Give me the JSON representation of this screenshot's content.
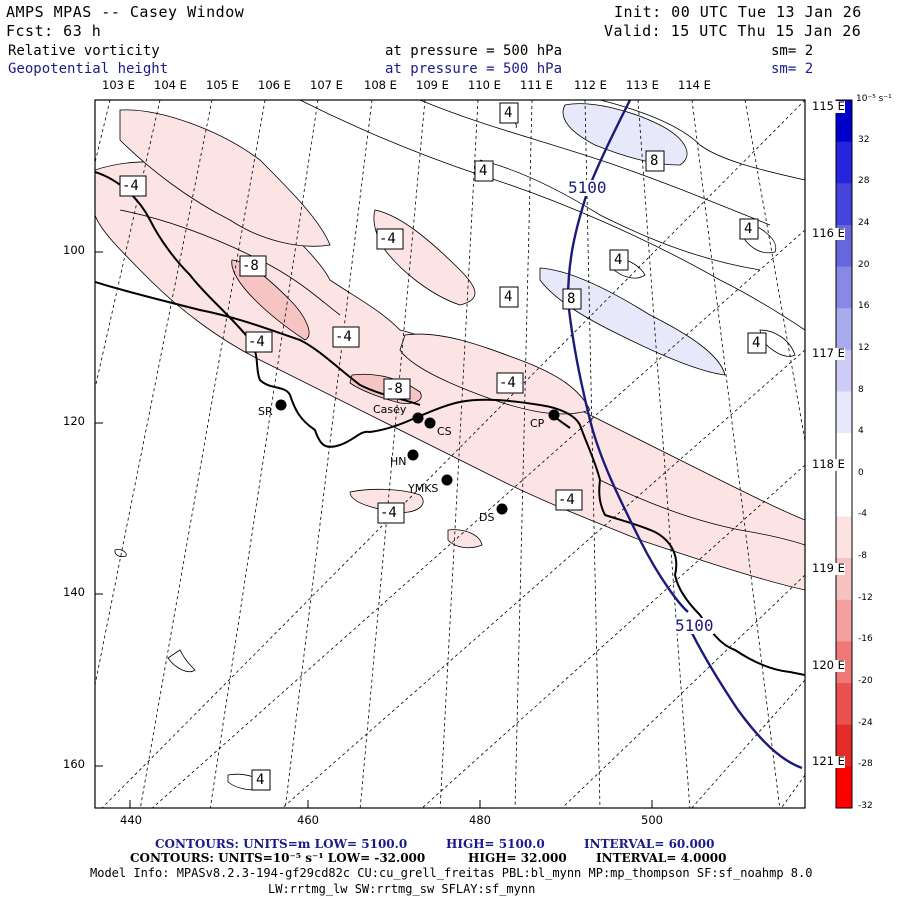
{
  "header": {
    "model": "AMPS MPAS -- Casey Window",
    "init": "Init: 00 UTC Tue 13 Jan 26",
    "fcst": "Fcst:   63 h",
    "valid": "Valid: 15 UTC Thu 15 Jan 26",
    "field1_name": "Relative vorticity",
    "field1_level": "at pressure =  500 hPa",
    "field1_sm": "sm= 2",
    "field2_name": "Geopotential height",
    "field2_level": "at pressure =  500 hPa",
    "field2_sm": "sm= 2"
  },
  "lon_labels_top": [
    "103 E",
    "104 E",
    "105 E",
    "106 E",
    "107 E",
    "108 E",
    "109 E",
    "110 E",
    "111 E",
    "112 E",
    "113 E",
    "114 E"
  ],
  "lon_labels_right": [
    "115 E",
    "116 E",
    "117 E",
    "118 E",
    "119 E",
    "120 E",
    "121 E"
  ],
  "x_ticks": [
    "440",
    "460",
    "480",
    "500"
  ],
  "y_ticks": [
    "100",
    "120",
    "140",
    "160"
  ],
  "stations": [
    "SR",
    "Casey",
    "CS",
    "HN",
    "YMKS",
    "DS",
    "CP"
  ],
  "contour_labels": {
    "vort": [
      "-4",
      "-4",
      "-8",
      "-4",
      "-4",
      "-8",
      "-4",
      "-4",
      "-4",
      "4",
      "4",
      "8",
      "4",
      "4",
      "8",
      "4",
      "4",
      "4"
    ],
    "height": [
      "5100",
      "5100"
    ]
  },
  "colorbar": {
    "unit": "10⁻⁵ s⁻¹",
    "ticks": [
      "32",
      "28",
      "24",
      "20",
      "16",
      "12",
      "8",
      "4",
      "0",
      "-4",
      "-8",
      "-12",
      "-16",
      "-20",
      "-24",
      "-28",
      "-32"
    ],
    "colors": [
      "#0000cc",
      "#2525dd",
      "#4444dd",
      "#6666dd",
      "#8888e6",
      "#aaaaee",
      "#ccccf6",
      "#e8e8fc",
      "#ffffff",
      "#ffffff",
      "#fde2e2",
      "#f8c2c2",
      "#f4a0a0",
      "#ef7878",
      "#ea5252",
      "#e52a2a",
      "#ff0000"
    ]
  },
  "footer": {
    "line1_a": "CONTOURS:  UNITS=m  LOW=  5100.0",
    "line1_b": "HIGH=  5100.0",
    "line1_c": "INTERVAL=   60.000",
    "line2_a": "CONTOURS:  UNITS=10⁻⁵ s⁻¹  LOW=  -32.000",
    "line2_b": "HIGH=  32.000",
    "line2_c": "INTERVAL=   4.0000",
    "line3": "Model Info: MPASv8.2.3-194-gf29cd82c CU:cu_grell_freitas PBL:bl_mynn MP:mp_thompson SF:sf_noahmp 8.0",
    "line4": "LW:rrtmg_lw SW:rrtmg_sw SFLAY:sf_mynn"
  }
}
